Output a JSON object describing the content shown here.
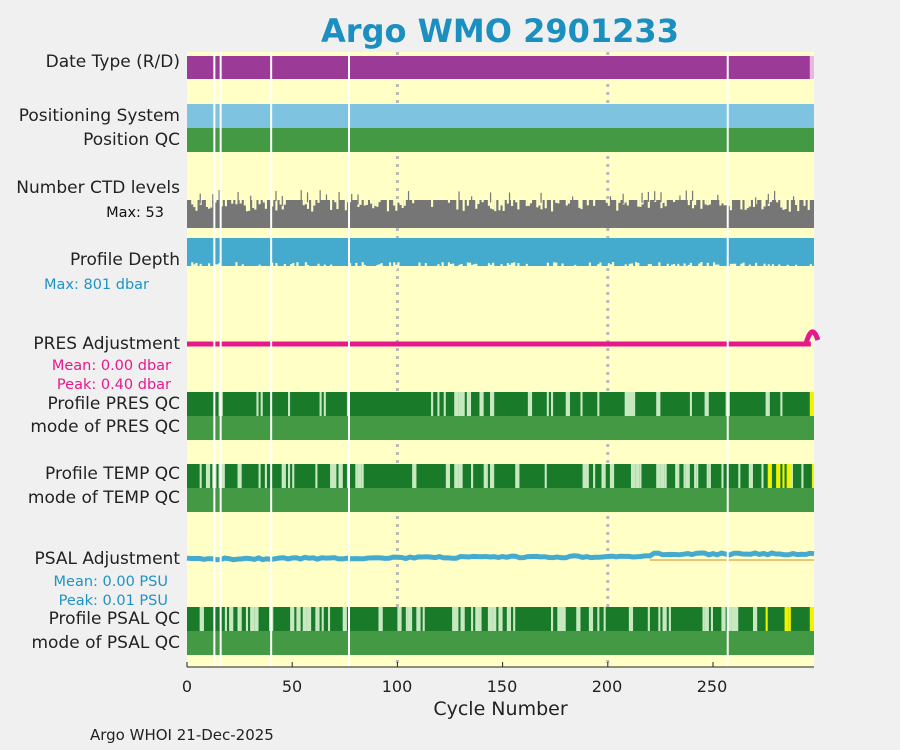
{
  "chart_data": {
    "type": "table",
    "title": "Argo WMO 2901233",
    "xlabel": "Cycle Number",
    "xlim": [
      0,
      298
    ],
    "xticks": [
      0,
      50,
      100,
      150,
      200,
      250
    ],
    "gridlines": [
      100,
      200
    ],
    "gap_cycles": [
      13,
      16,
      40,
      77,
      257
    ],
    "rows": [
      {
        "key": "datetype",
        "label": "Date Type (R/D)",
        "color": "#9b3b97"
      },
      {
        "key": "possys",
        "label": "Positioning System",
        "color": "#7ec4e0"
      },
      {
        "key": "posqc",
        "label": "Position QC",
        "color": "#449944"
      },
      {
        "key": "nlevels",
        "label": "Number CTD levels",
        "sub": "Max: 53",
        "color": "#767676"
      },
      {
        "key": "depth",
        "label": "Profile Depth",
        "sub": "Max:  801 dbar",
        "color": "#44abcf"
      },
      {
        "key": "presadj",
        "label": "PRES Adjustment",
        "sub1": "Mean: 0.00 dbar",
        "sub2": "Peak: 0.40 dbar",
        "color": "#e6198c"
      },
      {
        "key": "profpres",
        "label": "Profile PRES QC",
        "color": "#197a2a"
      },
      {
        "key": "modepres",
        "label": "mode of PRES QC",
        "color": "#449944"
      },
      {
        "key": "proftemp",
        "label": "Profile TEMP QC",
        "color": "#197a2a"
      },
      {
        "key": "modetemp",
        "label": "mode of TEMP QC",
        "color": "#449944"
      },
      {
        "key": "psaladj",
        "label": "PSAL Adjustment",
        "sub1": "Mean: 0.00 PSU",
        "sub2": "Peak: 0.01 PSU",
        "color": "#44abcf"
      },
      {
        "key": "profpsal",
        "label": "Profile PSAL QC",
        "color": "#197a2a"
      },
      {
        "key": "modepsal",
        "label": "mode of PSAL QC",
        "color": "#449944"
      }
    ],
    "pres_adjustment_peak_cycle": 297,
    "psal_adjustment_step_cycle": 220
  },
  "colors": {
    "background": "#ffffc6",
    "pres_color": "#e6198c",
    "psal_color": "#44abcf",
    "qc_good": "#197a2a",
    "qc_probably_good": "#c8e8c0",
    "qc_questionable": "#f2f200"
  },
  "footer": "Argo WHOI 21-Dec-2025"
}
